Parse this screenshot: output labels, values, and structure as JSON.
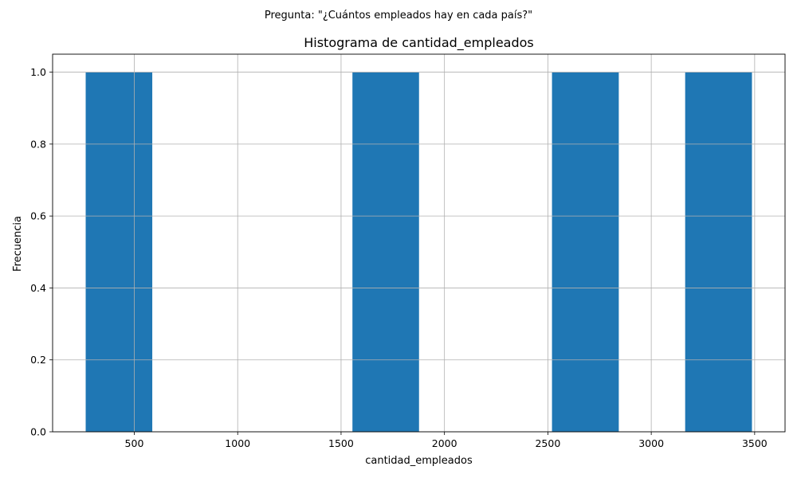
{
  "chart_data": {
    "type": "bar",
    "suptitle": "Pregunta: \"¿Cuántos empleados hay en cada país?\"",
    "title": "Histograma de cantidad_empleados",
    "xlabel": "cantidad_empleados",
    "ylabel": "Frecuencia",
    "bins": [
      {
        "x0": 265,
        "x1": 587,
        "count": 1.0
      },
      {
        "x0": 1555,
        "x1": 1877,
        "count": 1.0
      },
      {
        "x0": 2520,
        "x1": 2843,
        "count": 1.0
      },
      {
        "x0": 3164,
        "x1": 3487,
        "count": 1.0
      }
    ],
    "xlim": [
      105,
      3647
    ],
    "ylim": [
      0,
      1.05
    ],
    "xticks": [
      500,
      1000,
      1500,
      2000,
      2500,
      3000,
      3500
    ],
    "xtick_labels": [
      "500",
      "1000",
      "1500",
      "2000",
      "2500",
      "3000",
      "3500"
    ],
    "yticks": [
      0.0,
      0.2,
      0.4,
      0.6,
      0.8,
      1.0
    ],
    "ytick_labels": [
      "0.0",
      "0.2",
      "0.4",
      "0.6",
      "0.8",
      "1.0"
    ],
    "grid": true,
    "bar_color": "#1f77b4"
  }
}
